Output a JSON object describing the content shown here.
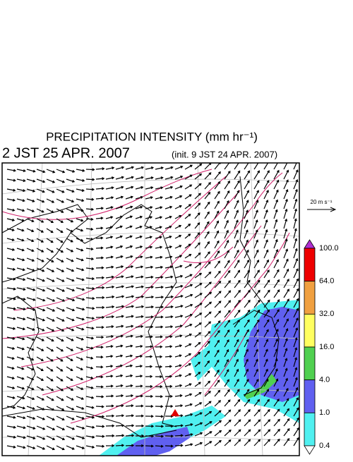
{
  "header": {
    "title": "PRECIPITATION INTENSITY (mm hr⁻¹)",
    "valid_time": "2 JST 25 APR. 2007",
    "init_time": "(init. 9 JST 24 APR. 2007)"
  },
  "vector_legend": {
    "label": "20 m s⁻¹"
  },
  "colorbar": {
    "labels": [
      "100.0",
      "64.0",
      "32.0",
      "16.0",
      "4.0",
      "1.0",
      "0.4"
    ],
    "colors": [
      "#b030d0",
      "#ee0000",
      "#f0a040",
      "#ffff60",
      "#50d050",
      "#6060f0",
      "#50f0f0",
      "#ffffff"
    ]
  }
}
